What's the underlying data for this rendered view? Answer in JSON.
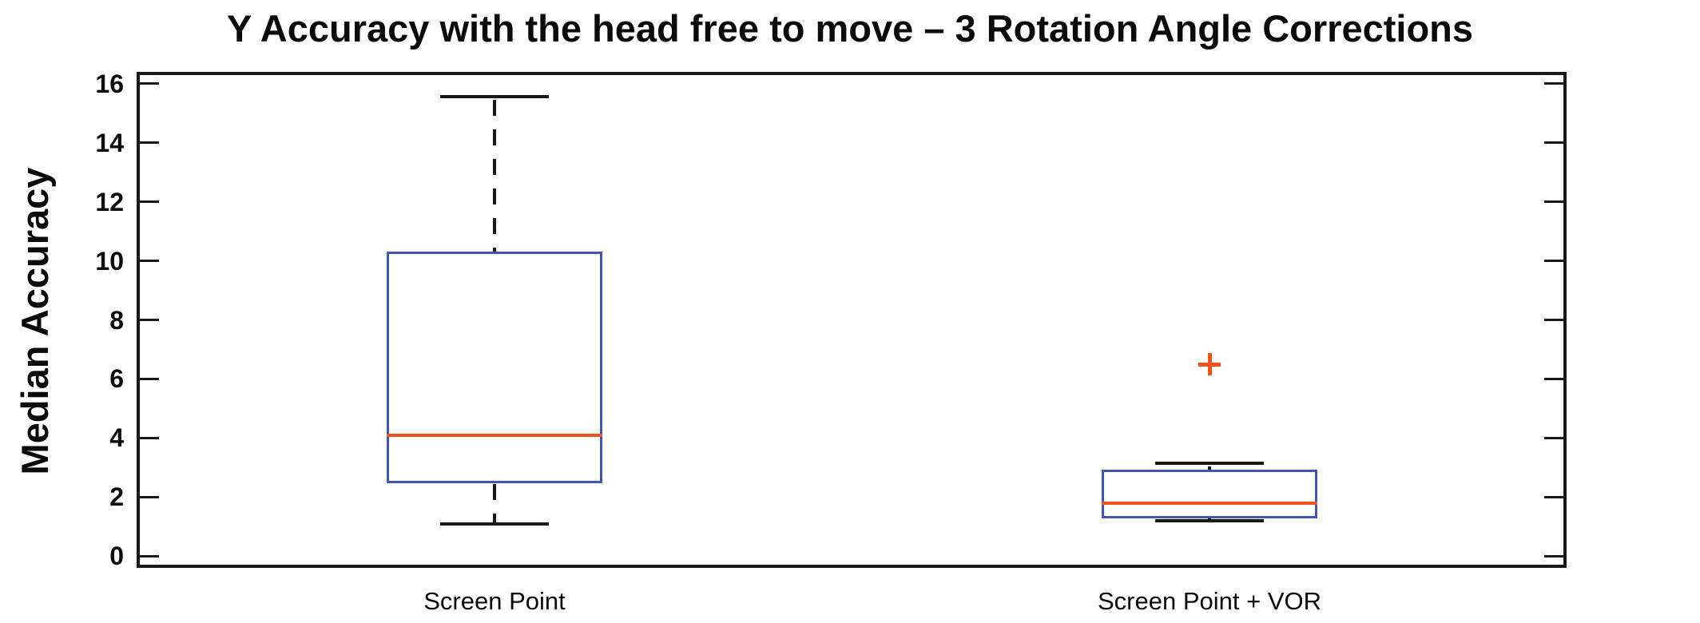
{
  "chart_data": {
    "type": "boxplot",
    "title": "Y Accuracy with the head free to move – 3 Rotation Angle Corrections",
    "ylabel": "Median Accuracy",
    "xlabel": "",
    "categories": [
      "Screen Point",
      "Screen Point + VOR"
    ],
    "ylim": [
      -0.4,
      16.4
    ],
    "yticks": [
      0,
      2,
      4,
      6,
      8,
      10,
      12,
      14,
      16
    ],
    "grid": false,
    "legend_position": "none",
    "series": [
      {
        "name": "Screen Point",
        "q1": 2.45,
        "median": 4.1,
        "q3": 10.3,
        "whisker_low": 1.1,
        "whisker_high": 15.55,
        "outliers": []
      },
      {
        "name": "Screen Point + VOR",
        "q1": 1.27,
        "median": 1.78,
        "q3": 2.93,
        "whisker_low": 1.2,
        "whisker_high": 3.15,
        "outliers": [
          6.5
        ]
      }
    ],
    "colors": {
      "box": "#4156b0",
      "median": "#f0511f",
      "outlier": "#f0511f",
      "whisker": "#1b1718",
      "axis": "#1b1718",
      "text": "#0c0a0b"
    }
  }
}
